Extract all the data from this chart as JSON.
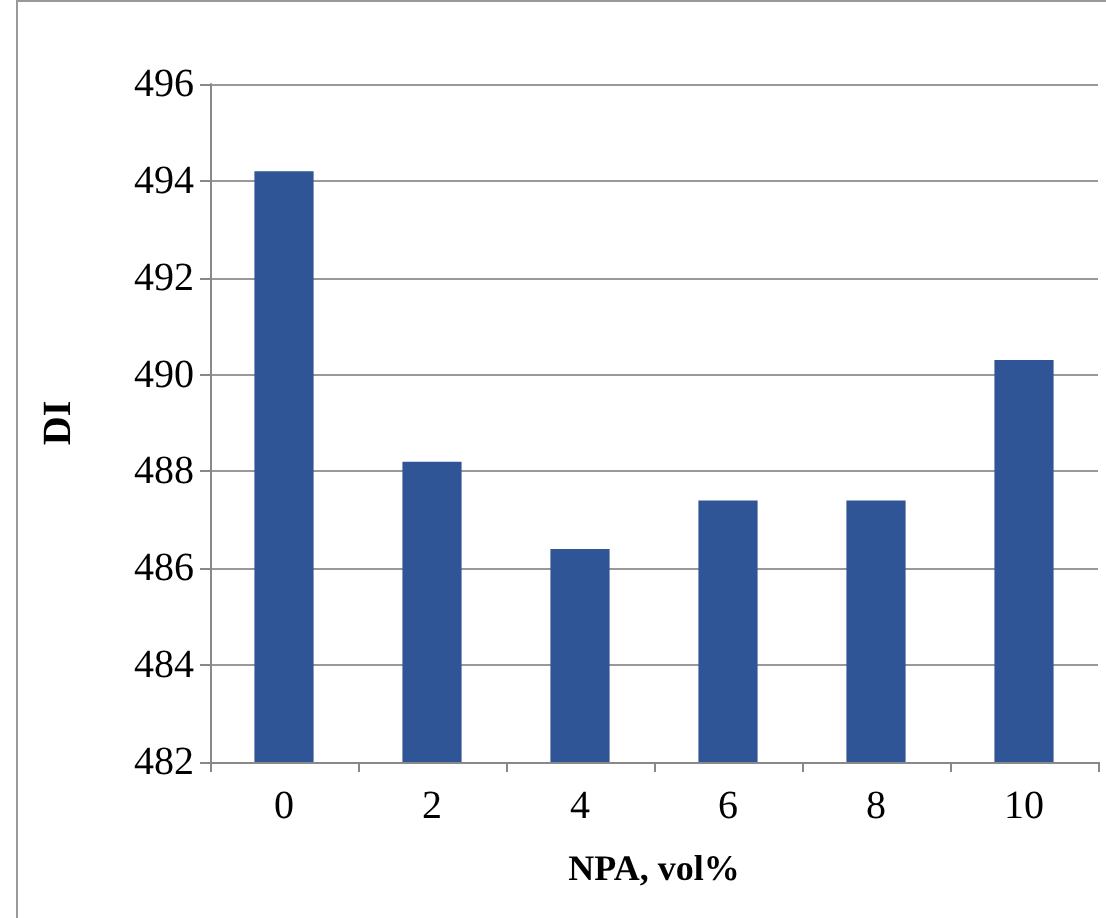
{
  "chart_data": {
    "type": "bar",
    "xlabel": "NPA, vol%",
    "ylabel": "DI",
    "categories": [
      "0",
      "2",
      "4",
      "6",
      "8",
      "10"
    ],
    "values": [
      494.2,
      488.2,
      486.4,
      487.4,
      487.4,
      490.3
    ],
    "color": "#2f5597",
    "ylim": [
      482,
      496
    ],
    "yticks": [
      482,
      484,
      486,
      488,
      490,
      492,
      494,
      496
    ],
    "grid": "y"
  }
}
